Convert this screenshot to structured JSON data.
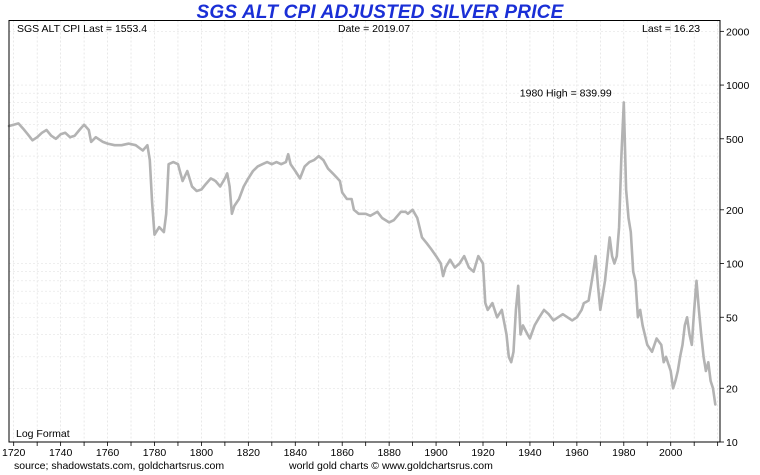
{
  "chart_data": {
    "type": "line",
    "title": "SGS ALT CPI ADJUSTED SILVER PRICE",
    "header": {
      "left": "SGS ALT CPI Last = 1553.4",
      "center": "Date = 2019.07",
      "right": "Last = 16.23"
    },
    "scale_note": "Log Format",
    "annotation": {
      "text": "1980 High = 839.99",
      "x": 1980,
      "y": 839.99
    },
    "footer": {
      "left": "source; shadowstats.com, goldchartsrus.com",
      "right": "world gold charts © www.goldchartsrus.com"
    },
    "xlabel": "",
    "ylabel": "",
    "xlim": [
      1718,
      2021
    ],
    "ylim": [
      10,
      2300
    ],
    "y_scale": "log",
    "x_ticks": [
      1720,
      1740,
      1760,
      1780,
      1800,
      1820,
      1840,
      1860,
      1880,
      1900,
      1920,
      1940,
      1960,
      1980,
      2000
    ],
    "y_ticks": [
      10,
      20,
      50,
      100,
      200,
      500,
      1000,
      2000
    ],
    "grid": true,
    "series": [
      {
        "name": "Silver price (SGS Alt CPI adjusted)",
        "color": "#b3b3b3",
        "points": [
          [
            1718,
            590
          ],
          [
            1720,
            600
          ],
          [
            1722,
            610
          ],
          [
            1724,
            570
          ],
          [
            1726,
            530
          ],
          [
            1728,
            490
          ],
          [
            1730,
            510
          ],
          [
            1732,
            540
          ],
          [
            1734,
            560
          ],
          [
            1736,
            520
          ],
          [
            1738,
            500
          ],
          [
            1740,
            530
          ],
          [
            1742,
            540
          ],
          [
            1744,
            510
          ],
          [
            1746,
            520
          ],
          [
            1748,
            560
          ],
          [
            1750,
            600
          ],
          [
            1752,
            560
          ],
          [
            1753,
            480
          ],
          [
            1755,
            510
          ],
          [
            1758,
            480
          ],
          [
            1760,
            470
          ],
          [
            1763,
            460
          ],
          [
            1766,
            460
          ],
          [
            1769,
            470
          ],
          [
            1772,
            460
          ],
          [
            1775,
            430
          ],
          [
            1777,
            460
          ],
          [
            1778,
            380
          ],
          [
            1779,
            220
          ],
          [
            1780,
            145
          ],
          [
            1782,
            160
          ],
          [
            1784,
            150
          ],
          [
            1785,
            190
          ],
          [
            1786,
            360
          ],
          [
            1788,
            370
          ],
          [
            1790,
            360
          ],
          [
            1792,
            290
          ],
          [
            1794,
            330
          ],
          [
            1796,
            270
          ],
          [
            1798,
            255
          ],
          [
            1800,
            260
          ],
          [
            1802,
            280
          ],
          [
            1804,
            300
          ],
          [
            1806,
            290
          ],
          [
            1808,
            270
          ],
          [
            1810,
            300
          ],
          [
            1811,
            320
          ],
          [
            1812,
            270
          ],
          [
            1813,
            190
          ],
          [
            1814,
            210
          ],
          [
            1816,
            230
          ],
          [
            1818,
            270
          ],
          [
            1820,
            300
          ],
          [
            1822,
            330
          ],
          [
            1824,
            350
          ],
          [
            1826,
            360
          ],
          [
            1828,
            370
          ],
          [
            1830,
            360
          ],
          [
            1832,
            370
          ],
          [
            1834,
            360
          ],
          [
            1836,
            370
          ],
          [
            1837,
            410
          ],
          [
            1838,
            360
          ],
          [
            1840,
            330
          ],
          [
            1842,
            300
          ],
          [
            1844,
            350
          ],
          [
            1846,
            370
          ],
          [
            1848,
            380
          ],
          [
            1850,
            400
          ],
          [
            1852,
            380
          ],
          [
            1854,
            340
          ],
          [
            1856,
            320
          ],
          [
            1858,
            300
          ],
          [
            1859,
            290
          ],
          [
            1860,
            250
          ],
          [
            1862,
            230
          ],
          [
            1864,
            230
          ],
          [
            1865,
            200
          ],
          [
            1867,
            190
          ],
          [
            1870,
            190
          ],
          [
            1872,
            185
          ],
          [
            1875,
            195
          ],
          [
            1877,
            180
          ],
          [
            1880,
            170
          ],
          [
            1882,
            175
          ],
          [
            1885,
            195
          ],
          [
            1887,
            195
          ],
          [
            1888,
            190
          ],
          [
            1890,
            200
          ],
          [
            1892,
            180
          ],
          [
            1894,
            140
          ],
          [
            1896,
            130
          ],
          [
            1898,
            120
          ],
          [
            1900,
            110
          ],
          [
            1902,
            100
          ],
          [
            1903,
            85
          ],
          [
            1904,
            95
          ],
          [
            1906,
            105
          ],
          [
            1908,
            95
          ],
          [
            1910,
            100
          ],
          [
            1912,
            110
          ],
          [
            1914,
            95
          ],
          [
            1916,
            90
          ],
          [
            1918,
            110
          ],
          [
            1920,
            100
          ],
          [
            1921,
            60
          ],
          [
            1922,
            55
          ],
          [
            1924,
            60
          ],
          [
            1926,
            50
          ],
          [
            1928,
            55
          ],
          [
            1930,
            40
          ],
          [
            1931,
            30
          ],
          [
            1932,
            28
          ],
          [
            1933,
            32
          ],
          [
            1934,
            55
          ],
          [
            1935,
            75
          ],
          [
            1936,
            40
          ],
          [
            1937,
            45
          ],
          [
            1939,
            40
          ],
          [
            1940,
            38
          ],
          [
            1942,
            45
          ],
          [
            1944,
            50
          ],
          [
            1946,
            55
          ],
          [
            1948,
            52
          ],
          [
            1950,
            48
          ],
          [
            1952,
            50
          ],
          [
            1954,
            52
          ],
          [
            1956,
            50
          ],
          [
            1958,
            48
          ],
          [
            1960,
            50
          ],
          [
            1962,
            55
          ],
          [
            1963,
            60
          ],
          [
            1965,
            62
          ],
          [
            1967,
            90
          ],
          [
            1968,
            110
          ],
          [
            1969,
            75
          ],
          [
            1970,
            55
          ],
          [
            1972,
            80
          ],
          [
            1974,
            140
          ],
          [
            1975,
            110
          ],
          [
            1976,
            100
          ],
          [
            1977,
            110
          ],
          [
            1978,
            160
          ],
          [
            1979,
            400
          ],
          [
            1980,
            800
          ],
          [
            1981,
            260
          ],
          [
            1982,
            180
          ],
          [
            1983,
            150
          ],
          [
            1984,
            90
          ],
          [
            1985,
            80
          ],
          [
            1986,
            50
          ],
          [
            1987,
            55
          ],
          [
            1988,
            45
          ],
          [
            1990,
            35
          ],
          [
            1992,
            32
          ],
          [
            1994,
            38
          ],
          [
            1996,
            35
          ],
          [
            1997,
            28
          ],
          [
            1998,
            30
          ],
          [
            2000,
            25
          ],
          [
            2001,
            20
          ],
          [
            2002,
            22
          ],
          [
            2003,
            25
          ],
          [
            2004,
            30
          ],
          [
            2005,
            35
          ],
          [
            2006,
            45
          ],
          [
            2007,
            50
          ],
          [
            2008,
            40
          ],
          [
            2009,
            35
          ],
          [
            2010,
            55
          ],
          [
            2011,
            80
          ],
          [
            2012,
            55
          ],
          [
            2013,
            40
          ],
          [
            2014,
            30
          ],
          [
            2015,
            25
          ],
          [
            2016,
            28
          ],
          [
            2017,
            22
          ],
          [
            2018,
            20
          ],
          [
            2019,
            16.23
          ]
        ]
      }
    ]
  }
}
